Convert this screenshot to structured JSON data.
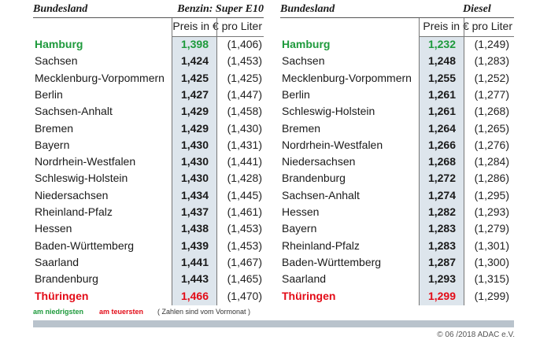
{
  "benzin": {
    "header_region": "Bundesland",
    "header_fuel": "Benzin: Super E10",
    "subheader": "Preis in € pro Liter",
    "rows": [
      {
        "region": "Hamburg",
        "price": "1,398",
        "prev": "(1,406)",
        "mark": "low"
      },
      {
        "region": "Sachsen",
        "price": "1,424",
        "prev": "(1,453)",
        "mark": ""
      },
      {
        "region": "Mecklenburg-Vorpommern",
        "price": "1,425",
        "prev": "(1,425)",
        "mark": ""
      },
      {
        "region": "Berlin",
        "price": "1,427",
        "prev": "(1,447)",
        "mark": ""
      },
      {
        "region": "Sachsen-Anhalt",
        "price": "1,429",
        "prev": "(1,458)",
        "mark": ""
      },
      {
        "region": "Bremen",
        "price": "1,429",
        "prev": "(1,430)",
        "mark": ""
      },
      {
        "region": "Bayern",
        "price": "1,430",
        "prev": "(1,431)",
        "mark": ""
      },
      {
        "region": "Nordrhein-Westfalen",
        "price": "1,430",
        "prev": "(1,441)",
        "mark": ""
      },
      {
        "region": "Schleswig-Holstein",
        "price": "1,430",
        "prev": "(1,428)",
        "mark": ""
      },
      {
        "region": "Niedersachsen",
        "price": "1,434",
        "prev": "(1,445)",
        "mark": ""
      },
      {
        "region": "Rheinland-Pfalz",
        "price": "1,437",
        "prev": "(1,461)",
        "mark": ""
      },
      {
        "region": "Hessen",
        "price": "1,438",
        "prev": "(1,453)",
        "mark": ""
      },
      {
        "region": "Baden-Württemberg",
        "price": "1,439",
        "prev": "(1,453)",
        "mark": ""
      },
      {
        "region": "Saarland",
        "price": "1,441",
        "prev": "(1,467)",
        "mark": ""
      },
      {
        "region": "Brandenburg",
        "price": "1,443",
        "prev": "(1,465)",
        "mark": ""
      },
      {
        "region": "Thüringen",
        "price": "1,466",
        "prev": "(1,470)",
        "mark": "high"
      }
    ]
  },
  "diesel": {
    "header_region": "Bundesland",
    "header_fuel": "Diesel",
    "subheader": "Preis in € pro Liter",
    "rows": [
      {
        "region": "Hamburg",
        "price": "1,232",
        "prev": "(1,249)",
        "mark": "low"
      },
      {
        "region": "Sachsen",
        "price": "1,248",
        "prev": "(1,283)",
        "mark": ""
      },
      {
        "region": "Mecklenburg-Vorpommern",
        "price": "1,255",
        "prev": "(1,252)",
        "mark": ""
      },
      {
        "region": "Berlin",
        "price": "1,261",
        "prev": "(1,277)",
        "mark": ""
      },
      {
        "region": "Schleswig-Holstein",
        "price": "1,261",
        "prev": "(1,268)",
        "mark": ""
      },
      {
        "region": "Bremen",
        "price": "1,264",
        "prev": "(1,265)",
        "mark": ""
      },
      {
        "region": "Nordrhein-Westfalen",
        "price": "1,266",
        "prev": "(1,276)",
        "mark": ""
      },
      {
        "region": "Niedersachsen",
        "price": "1,268",
        "prev": "(1,284)",
        "mark": ""
      },
      {
        "region": "Brandenburg",
        "price": "1,272",
        "prev": "(1,286)",
        "mark": ""
      },
      {
        "region": "Sachsen-Anhalt",
        "price": "1,274",
        "prev": "(1,295)",
        "mark": ""
      },
      {
        "region": "Hessen",
        "price": "1,282",
        "prev": "(1,293)",
        "mark": ""
      },
      {
        "region": "Bayern",
        "price": "1,283",
        "prev": "(1,279)",
        "mark": ""
      },
      {
        "region": "Rheinland-Pfalz",
        "price": "1,283",
        "prev": "(1,301)",
        "mark": ""
      },
      {
        "region": "Baden-Württemberg",
        "price": "1,287",
        "prev": "(1,300)",
        "mark": ""
      },
      {
        "region": "Saarland",
        "price": "1,293",
        "prev": "(1,315)",
        "mark": ""
      },
      {
        "region": "Thüringen",
        "price": "1,299",
        "prev": "(1,299)",
        "mark": "high"
      }
    ]
  },
  "legend": {
    "low": "am niedrigsten",
    "high": "am teuersten",
    "note": "( Zahlen sind vom Vormonat )"
  },
  "colors": {
    "low": "#1e9a3c",
    "high": "#e30b17",
    "shade": "#dde5ec"
  },
  "copyright": "© 06 /2018 ADAC e.V."
}
